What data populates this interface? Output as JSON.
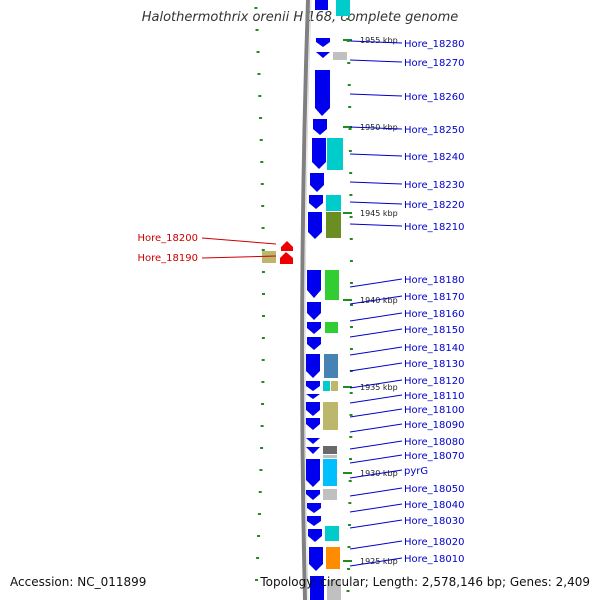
{
  "title": "Halothermothrix orenii H 168, complete genome",
  "accession": "Accession: NC_011899",
  "topology": "Topology: circular; Length: 2,578,146 bp; Genes: 2,409",
  "colors": {
    "forward_label": "#0000cc",
    "reverse_label": "#cc0000",
    "forward_arrow": "#0000ee",
    "reverse_arrow": "#ee0000",
    "backbone": "#808080",
    "ticks": "#228b22"
  },
  "kbp_labels": [
    {
      "text": "1955 kbp",
      "pos": 40
    },
    {
      "text": "1950 kbp",
      "pos": 127
    },
    {
      "text": "1945 kbp",
      "pos": 213
    },
    {
      "text": "1940 kbp",
      "pos": 300
    },
    {
      "text": "1935 kbp",
      "pos": 387
    },
    {
      "text": "1930 kbp",
      "pos": 473
    },
    {
      "text": "1925 kbp",
      "pos": 561
    }
  ],
  "forward_genes": [
    {
      "label": "Hore_18280",
      "pos": 43
    },
    {
      "label": "Hore_18270",
      "pos": 62
    },
    {
      "label": "Hore_18260",
      "pos": 96
    },
    {
      "label": "Hore_18250",
      "pos": 129
    },
    {
      "label": "Hore_18240",
      "pos": 156
    },
    {
      "label": "Hore_18230",
      "pos": 184
    },
    {
      "label": "Hore_18220",
      "pos": 204
    },
    {
      "label": "Hore_18210",
      "pos": 226
    },
    {
      "label": "Hore_18180",
      "pos": 279
    },
    {
      "label": "Hore_18170",
      "pos": 296
    },
    {
      "label": "Hore_18160",
      "pos": 313
    },
    {
      "label": "Hore_18150",
      "pos": 329
    },
    {
      "label": "Hore_18140",
      "pos": 347
    },
    {
      "label": "Hore_18130",
      "pos": 363
    },
    {
      "label": "Hore_18120",
      "pos": 380
    },
    {
      "label": "Hore_18110",
      "pos": 395
    },
    {
      "label": "Hore_18100",
      "pos": 409
    },
    {
      "label": "Hore_18090",
      "pos": 424
    },
    {
      "label": "Hore_18080",
      "pos": 441
    },
    {
      "label": "Hore_18070",
      "pos": 455
    },
    {
      "label": "pyrG",
      "pos": 470
    },
    {
      "label": "Hore_18050",
      "pos": 488
    },
    {
      "label": "Hore_18040",
      "pos": 504
    },
    {
      "label": "Hore_18030",
      "pos": 520
    },
    {
      "label": "Hore_18020",
      "pos": 541
    },
    {
      "label": "Hore_18010",
      "pos": 558
    }
  ],
  "reverse_genes": [
    {
      "label": "Hore_18200",
      "pos": 238
    },
    {
      "label": "Hore_18190",
      "pos": 258
    }
  ]
}
